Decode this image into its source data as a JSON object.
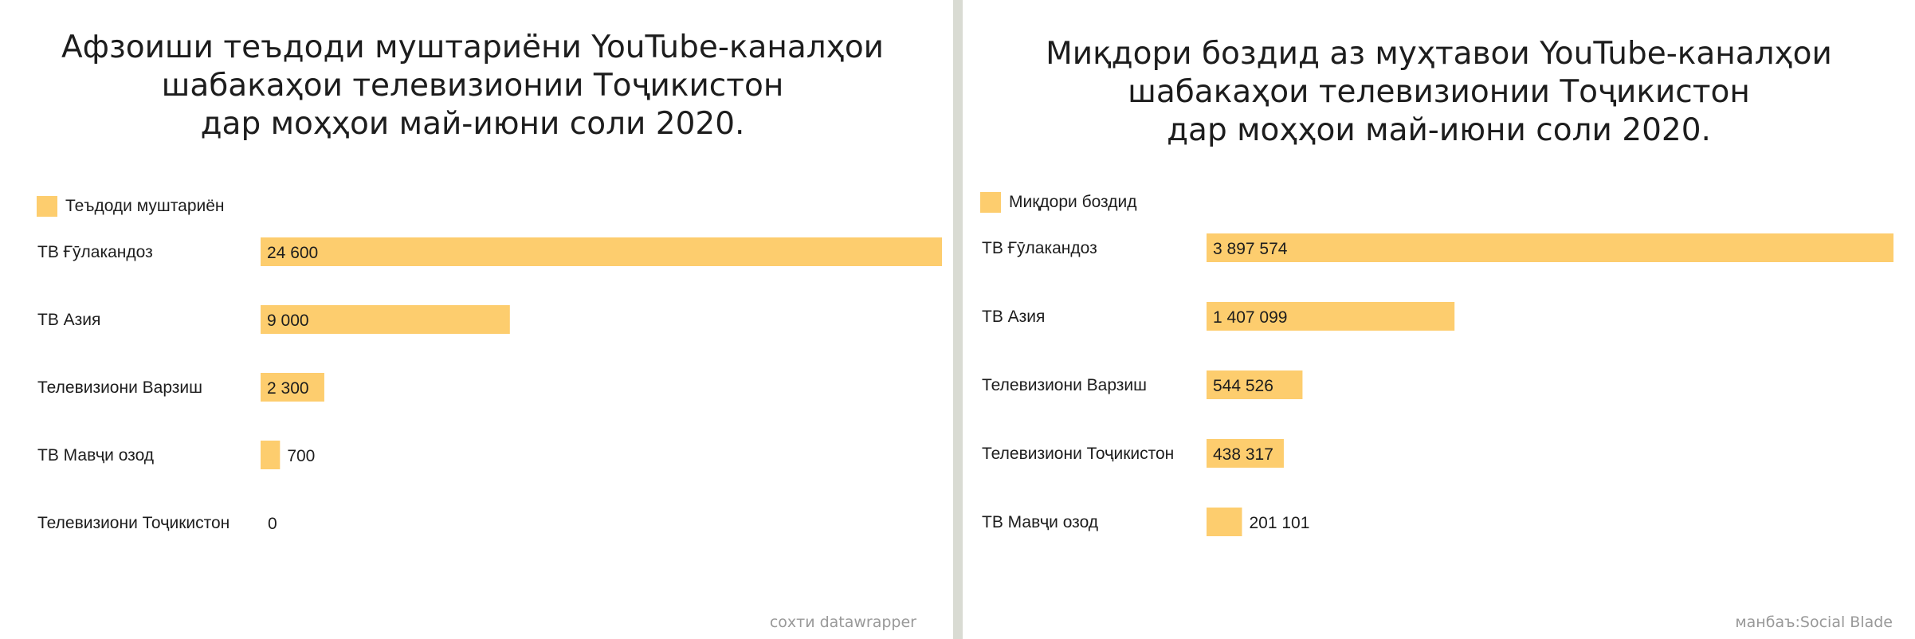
{
  "colors": {
    "bar": "#fdcd6e",
    "divider": "#d9dbd3",
    "footer": "#999999",
    "text": "#1d1d1d"
  },
  "left": {
    "title": "Афзоиши теъдоди муштариёни YouTube-каналҳои\nшабакаҳои телевизионии Тоҷикистон\nдар моҳҳои май-июни соли 2020.",
    "legend": "Теъдоди муштариён",
    "footer": "сохти datawrapper"
  },
  "right": {
    "title": "Миқдори боздид аз муҳтавои YouTube-каналҳои\nшабакаҳои телевизионии Тоҷикистон\nдар моҳҳои май-июни соли 2020.",
    "legend": "Миқдори боздид",
    "footer": "манбаъ:Social Blade"
  },
  "chart_data": [
    {
      "type": "bar",
      "orientation": "horizontal",
      "title": "Афзоиши теъдоди муштариёни YouTube-каналҳои шабакаҳои телевизионии Тоҷикистон дар моҳҳои май-июни соли 2020.",
      "legend": [
        "Теъдоди муштариён"
      ],
      "categories": [
        "ТВ Ғӯлакандоз",
        "ТВ Азия",
        "Телевизиони Варзиш",
        "ТВ Мавҷи озод",
        "Телевизиони Тоҷикистон"
      ],
      "values": [
        24600,
        9000,
        2300,
        700,
        0
      ],
      "labels": [
        "24 600",
        "9 000",
        "2 300",
        "700",
        "0"
      ],
      "xlim": [
        0,
        24600
      ],
      "grid": false,
      "legend_position": "top-left"
    },
    {
      "type": "bar",
      "orientation": "horizontal",
      "title": "Миқдори боздид аз муҳтавои YouTube-каналҳои шабакаҳои телевизионии Тоҷикистон дар моҳҳои май-июни соли 2020.",
      "legend": [
        "Миқдори боздид"
      ],
      "categories": [
        "ТВ Ғӯлакандоз",
        "ТВ Азия",
        "Телевизиони Варзиш",
        "Телевизиони Тоҷикистон",
        "ТВ Мавҷи озод"
      ],
      "values": [
        3897574,
        1407099,
        544526,
        438317,
        201101
      ],
      "labels": [
        "3 897 574",
        "1 407 099",
        "544 526",
        "438 317",
        "201 101"
      ],
      "xlim": [
        0,
        3897574
      ],
      "grid": false,
      "legend_position": "top-left"
    }
  ]
}
